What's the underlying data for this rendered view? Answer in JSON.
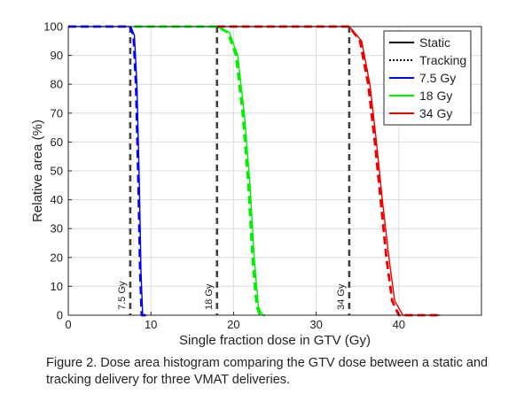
{
  "caption": "Figure 2. Dose area histogram comparing the GTV dose between a static and tracking delivery for three VMAT deliveries.",
  "chart_data": {
    "type": "line",
    "title": "",
    "xlabel": "Single fraction dose in GTV (Gy)",
    "ylabel": "Relative area (%)",
    "xlim": [
      0,
      50
    ],
    "ylim": [
      0,
      100
    ],
    "xticks": [
      0,
      10,
      20,
      30,
      40
    ],
    "yticks": [
      0,
      10,
      20,
      30,
      40,
      50,
      60,
      70,
      80,
      90,
      100
    ],
    "grid": true,
    "legend_position": "top-right",
    "legend": [
      {
        "label": "Static",
        "color": "#000000",
        "style": "solid"
      },
      {
        "label": "Tracking",
        "color": "#000000",
        "style": "dotted"
      },
      {
        "label": "7.5 Gy",
        "color": "#0000ff",
        "style": "solid"
      },
      {
        "label": "18 Gy",
        "color": "#00ee00",
        "style": "solid"
      },
      {
        "label": "34 Gy",
        "color": "#ee0000",
        "style": "solid"
      }
    ],
    "reference_lines": [
      {
        "x": 7.5,
        "label": "7.5 Gy"
      },
      {
        "x": 18,
        "label": "18 Gy"
      },
      {
        "x": 34,
        "label": "34 Gy"
      }
    ],
    "series": [
      {
        "name": "7.5 Gy",
        "delivery": "Static",
        "color": "#0000ff",
        "x": [
          0,
          7.5,
          8.0,
          8.3,
          8.6,
          8.8,
          9.0,
          9.5
        ],
        "y": [
          100,
          100,
          97,
          80,
          45,
          15,
          0,
          0
        ]
      },
      {
        "name": "7.5 Gy",
        "delivery": "Tracking",
        "color": "#0000ff",
        "x": [
          0,
          7.5,
          7.9,
          8.2,
          8.5,
          8.7,
          8.9,
          9.5
        ],
        "y": [
          100,
          100,
          97,
          80,
          45,
          15,
          0,
          0
        ]
      },
      {
        "name": "18 Gy",
        "delivery": "Static",
        "color": "#00ee00",
        "x": [
          8,
          18,
          19.5,
          20.5,
          21.3,
          22.0,
          22.5,
          23.0,
          23.5,
          23.8
        ],
        "y": [
          100,
          100,
          98,
          90,
          70,
          45,
          20,
          3,
          0,
          0
        ]
      },
      {
        "name": "18 Gy",
        "delivery": "Tracking",
        "color": "#00ee00",
        "x": [
          8,
          18,
          19.3,
          20.3,
          21.1,
          21.8,
          22.3,
          22.8,
          23.2,
          23.8
        ],
        "y": [
          100,
          100,
          98,
          90,
          70,
          45,
          20,
          3,
          0,
          0
        ]
      },
      {
        "name": "34 Gy",
        "delivery": "Static",
        "color": "#ee0000",
        "x": [
          18,
          34,
          35.5,
          36.5,
          37.3,
          38.0,
          38.8,
          39.5,
          40.5,
          45
        ],
        "y": [
          100,
          100,
          95,
          80,
          60,
          40,
          20,
          5,
          0,
          0
        ]
      },
      {
        "name": "34 Gy",
        "delivery": "Tracking",
        "color": "#ee0000",
        "x": [
          18,
          34,
          35.3,
          36.3,
          37.1,
          37.8,
          38.5,
          39.2,
          40.0,
          45
        ],
        "y": [
          100,
          100,
          95,
          80,
          60,
          40,
          20,
          5,
          0,
          0
        ]
      }
    ]
  }
}
